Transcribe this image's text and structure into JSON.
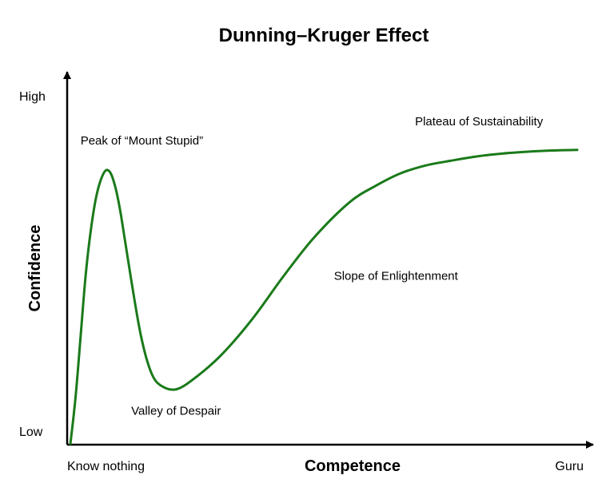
{
  "chart_data": {
    "type": "line",
    "title": "Dunning–Kruger Effect",
    "xlabel": "Competence",
    "ylabel": "Confidence",
    "x_ticks": [
      "Know nothing",
      "Guru"
    ],
    "y_ticks": [
      "Low",
      "High"
    ],
    "xlim": [
      0,
      100
    ],
    "ylim": [
      0,
      100
    ],
    "grid": false,
    "series": [
      {
        "color": "#1a7a1a",
        "x": [
          0,
          1,
          2,
          3,
          4,
          5,
          6,
          7,
          8,
          9,
          10,
          12,
          14,
          16,
          18,
          21,
          25,
          30,
          36,
          42,
          48,
          55,
          60,
          65,
          70,
          75,
          80,
          85,
          90,
          95,
          100
        ],
        "y": [
          0,
          14,
          33,
          52,
          66,
          76,
          82,
          85,
          84,
          79,
          71,
          51,
          33,
          22,
          18,
          17,
          21,
          28,
          39,
          52,
          64,
          75,
          80,
          84,
          86.5,
          88,
          89.3,
          90.2,
          90.8,
          91.2,
          91.4
        ]
      }
    ],
    "annotations": [
      {
        "text": "Peak of “Mount Stupid”",
        "x": 2,
        "y": 93
      },
      {
        "text": "Valley of Despair",
        "x": 12,
        "y": 9
      },
      {
        "text": "Slope of Enlightenment",
        "x": 52,
        "y": 51
      },
      {
        "text": "Plateau of Sustainability",
        "x": 68,
        "y": 99
      }
    ]
  }
}
